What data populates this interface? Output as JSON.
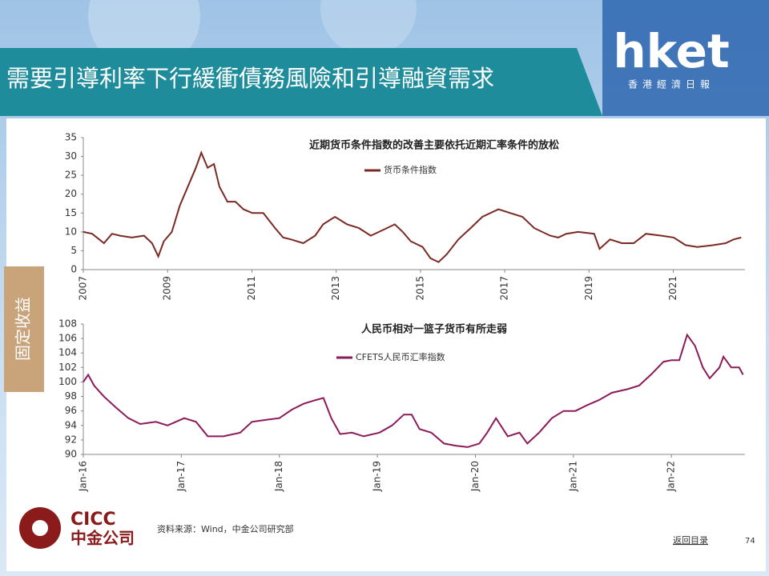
{
  "header": {
    "title": "需要引導利率下行緩衝債務風險和引導融資需求",
    "logo": "hket",
    "logo_sub": "香港經濟日報"
  },
  "side_tab": "固定收益",
  "footer": {
    "company_en": "CICC",
    "company_cn": "中金公司",
    "source": "资料来源：Wind，中金公司研究部",
    "back": "返回目录",
    "page": "74"
  },
  "chart_data": [
    {
      "type": "line",
      "title": "近期货币条件指数的改善主要依托近期汇率条件的放松",
      "x": [
        2007.0,
        2007.21,
        2007.49,
        2007.68,
        2007.87,
        2008.15,
        2008.44,
        2008.63,
        2008.78,
        2008.91,
        2009.1,
        2009.29,
        2009.48,
        2009.67,
        2009.8,
        2009.95,
        2010.1,
        2010.23,
        2010.42,
        2010.61,
        2010.8,
        2011.01,
        2011.27,
        2011.55,
        2011.74,
        2011.93,
        2012.22,
        2012.5,
        2012.69,
        2012.97,
        2013.26,
        2013.54,
        2013.82,
        2014.11,
        2014.39,
        2014.58,
        2014.77,
        2015.05,
        2015.24,
        2015.43,
        2015.62,
        2015.9,
        2016.19,
        2016.47,
        2016.85,
        2017.13,
        2017.42,
        2017.7,
        2018.08,
        2018.27,
        2018.46,
        2018.74,
        2019.12,
        2019.25,
        2019.5,
        2019.78,
        2020.06,
        2020.35,
        2020.72,
        2021.01,
        2021.29,
        2021.57,
        2021.95,
        2022.24,
        2022.43,
        2022.61
      ],
      "series": [
        {
          "name": "货币条件指数",
          "color": "#7a2a22",
          "values": [
            10,
            9.5,
            7,
            9.5,
            9,
            8.5,
            9,
            7,
            3.5,
            7.5,
            10,
            17,
            22,
            27,
            31,
            27,
            28,
            22,
            18,
            18,
            16,
            15,
            15,
            11,
            8.5,
            8,
            7,
            9,
            12,
            14,
            12,
            11,
            9,
            10.5,
            12,
            10,
            7.5,
            6,
            3,
            2,
            4,
            8,
            11,
            14,
            16,
            15,
            14,
            11,
            9,
            8.5,
            9.5,
            10,
            9.5,
            5.5,
            8,
            7,
            7,
            9.5,
            9,
            8.5,
            6.5,
            6,
            6.5,
            7,
            8,
            8.5
          ]
        }
      ],
      "xlim": [
        2007,
        2022.7
      ],
      "xticks": [
        2007,
        2009,
        2011,
        2013,
        2015,
        2017,
        2019,
        2021
      ],
      "ylim": [
        0,
        35
      ],
      "yticks": [
        0,
        5,
        10,
        15,
        20,
        25,
        30,
        35
      ],
      "grid": false
    },
    {
      "type": "line",
      "title": "人民币相对一篮子货币有所走弱",
      "x": [
        2016.0,
        2016.05,
        2016.11,
        2016.21,
        2016.33,
        2016.46,
        2016.58,
        2016.74,
        2016.86,
        2017.03,
        2017.15,
        2017.27,
        2017.43,
        2017.6,
        2017.72,
        2017.88,
        2018.0,
        2018.13,
        2018.25,
        2018.37,
        2018.45,
        2018.53,
        2018.62,
        2018.74,
        2018.86,
        2019.02,
        2019.15,
        2019.27,
        2019.35,
        2019.43,
        2019.55,
        2019.68,
        2019.8,
        2019.92,
        2020.04,
        2020.12,
        2020.21,
        2020.33,
        2020.45,
        2020.53,
        2020.65,
        2020.78,
        2020.9,
        2021.02,
        2021.14,
        2021.26,
        2021.39,
        2021.55,
        2021.67,
        2021.79,
        2021.92,
        2022.0,
        2022.08,
        2022.16,
        2022.24,
        2022.32,
        2022.39,
        2022.49,
        2022.53,
        2022.61,
        2022.69,
        2022.73
      ],
      "series": [
        {
          "name": "CFETS人民币汇率指数",
          "color": "#8b1a5a",
          "values": [
            100,
            101,
            99.5,
            98,
            96.5,
            95,
            94.2,
            94.5,
            94,
            95,
            94.5,
            92.5,
            92.5,
            93,
            94.5,
            94.8,
            95,
            96.2,
            97,
            97.5,
            97.8,
            95,
            92.8,
            93,
            92.5,
            93,
            94,
            95.5,
            95.5,
            93.5,
            93,
            91.5,
            91.2,
            91,
            91.5,
            93,
            95,
            92.5,
            93,
            91.5,
            93,
            95,
            96,
            96,
            96.8,
            97.5,
            98.5,
            99,
            99.5,
            101,
            102.8,
            103,
            103,
            106.5,
            105,
            102,
            100.5,
            102,
            103.5,
            102,
            102,
            101
          ]
        }
      ],
      "xlim": [
        2016,
        2022.75
      ],
      "xticks": [
        {
          "value": 2016,
          "label": "Jan-16"
        },
        {
          "value": 2017,
          "label": "Jan-17"
        },
        {
          "value": 2018,
          "label": "Jan-18"
        },
        {
          "value": 2019,
          "label": "Jan-19"
        },
        {
          "value": 2020,
          "label": "Jan-20"
        },
        {
          "value": 2021,
          "label": "Jan-21"
        },
        {
          "value": 2022,
          "label": "Jan-22"
        }
      ],
      "ylim": [
        90,
        108
      ],
      "yticks": [
        90,
        92,
        94,
        96,
        98,
        100,
        102,
        104,
        106,
        108
      ],
      "grid": false
    }
  ]
}
